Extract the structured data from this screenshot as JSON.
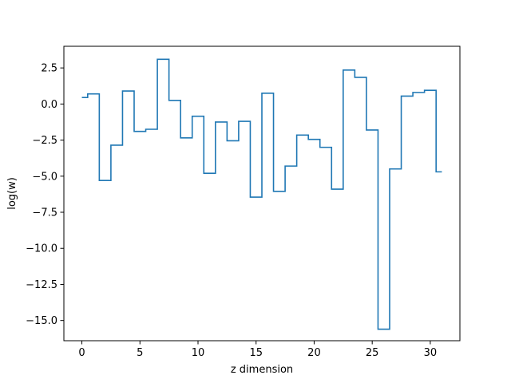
{
  "chart_data": {
    "type": "line",
    "drawstyle": "steps-mid",
    "title": "",
    "xlabel": "z dimension",
    "ylabel": "log(w)",
    "xlim": [
      -1.55,
      32.55
    ],
    "ylim": [
      -16.4,
      4.0
    ],
    "x_ticks": [
      0,
      5,
      10,
      15,
      20,
      25,
      30
    ],
    "x_tick_labels": [
      "0",
      "5",
      "10",
      "15",
      "20",
      "25",
      "30"
    ],
    "y_ticks": [
      2.5,
      0.0,
      -2.5,
      -5.0,
      -7.5,
      -10.0,
      -12.5,
      -15.0
    ],
    "y_tick_labels": [
      "2.5",
      "0.0",
      "−2.5",
      "−5.0",
      "−7.5",
      "−10.0",
      "−12.5",
      "−15.0"
    ],
    "grid": false,
    "series": [
      {
        "color": "#1f77b4",
        "x": [
          0,
          1,
          2,
          3,
          4,
          5,
          6,
          7,
          8,
          9,
          10,
          11,
          12,
          13,
          14,
          15,
          16,
          17,
          18,
          19,
          20,
          21,
          22,
          23,
          24,
          25,
          26,
          27,
          28,
          29,
          30,
          31
        ],
        "y": [
          0.45,
          0.7,
          -5.3,
          -2.85,
          0.9,
          -1.9,
          -1.75,
          3.1,
          0.25,
          -2.35,
          -0.85,
          -4.8,
          -1.25,
          -2.55,
          -1.2,
          -6.45,
          0.75,
          -6.05,
          -4.3,
          -2.15,
          -2.45,
          -3.0,
          -5.9,
          2.35,
          1.85,
          -1.8,
          -15.6,
          -4.5,
          0.55,
          0.8,
          0.95,
          -4.7
        ]
      }
    ]
  }
}
